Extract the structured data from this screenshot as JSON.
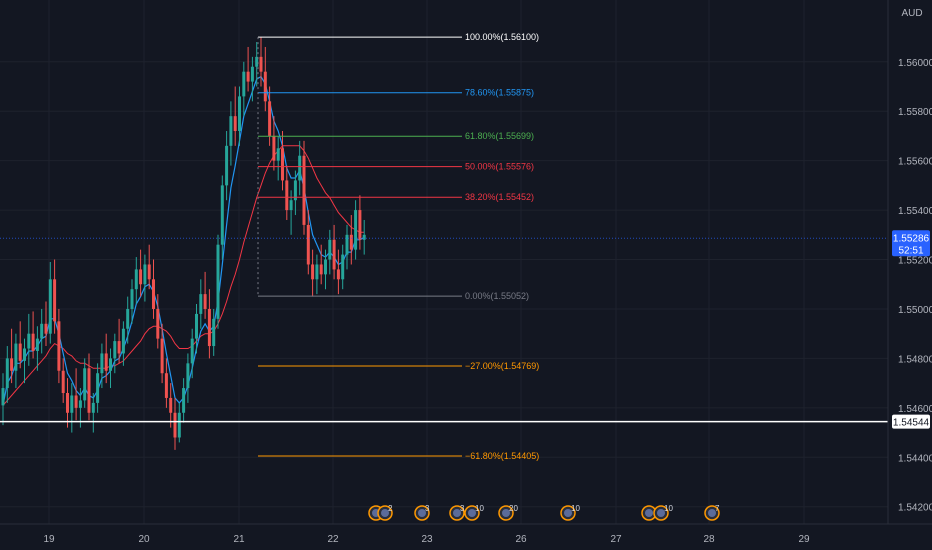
{
  "chart_data": {
    "type": "candlestick",
    "currency": "AUD",
    "ylim": [
      1.5413,
      1.5625
    ],
    "y_ticks": [
      "1.54200",
      "1.54400",
      "1.54600",
      "1.54800",
      "1.55000",
      "1.55200",
      "1.55400",
      "1.55600",
      "1.55800",
      "1.56000"
    ],
    "x_ticks": [
      "19",
      "20",
      "21",
      "22",
      "23",
      "26",
      "27",
      "28",
      "29"
    ],
    "current_price": {
      "price": 1.55286,
      "label": "1.55286",
      "countdown": "52:51",
      "color": "#2962ff"
    },
    "horizontal_line": {
      "price": 1.54544,
      "label": "1.54544",
      "color": "#ffffff"
    },
    "fib_levels": [
      {
        "label": "100.00%(1.56100)",
        "price": 1.561,
        "color": "#ffffff"
      },
      {
        "label": "78.60%(1.55875)",
        "price": 1.55875,
        "color": "#2196f3"
      },
      {
        "label": "61.80%(1.55699)",
        "price": 1.55699,
        "color": "#4caf50"
      },
      {
        "label": "50.00%(1.55576)",
        "price": 1.55576,
        "color": "#f23645"
      },
      {
        "label": "38.20%(1.55452)",
        "price": 1.55452,
        "color": "#f23645"
      },
      {
        "label": "0.00%(1.55052)",
        "price": 1.55052,
        "color": "#787b86"
      },
      {
        "label": "−27.00%(1.54769)",
        "price": 1.54769,
        "color": "#ff9800"
      },
      {
        "label": "−61.80%(1.54405)",
        "price": 1.54405,
        "color": "#ff9800"
      }
    ],
    "candles": [
      [
        1.5461,
        1.5474,
        1.5453,
        1.5468
      ],
      [
        1.5468,
        1.5485,
        1.5462,
        1.548
      ],
      [
        1.548,
        1.5492,
        1.547,
        1.5475
      ],
      [
        1.5475,
        1.549,
        1.5468,
        1.5486
      ],
      [
        1.5486,
        1.5495,
        1.5476,
        1.5479
      ],
      [
        1.5479,
        1.5488,
        1.547,
        1.5484
      ],
      [
        1.5484,
        1.5498,
        1.5477,
        1.549
      ],
      [
        1.549,
        1.5499,
        1.548,
        1.5483
      ],
      [
        1.5483,
        1.5493,
        1.5475,
        1.5488
      ],
      [
        1.5488,
        1.55,
        1.5482,
        1.5494
      ],
      [
        1.5494,
        1.5503,
        1.5485,
        1.549
      ],
      [
        1.549,
        1.5519,
        1.5486,
        1.5512
      ],
      [
        1.5512,
        1.552,
        1.549,
        1.5495
      ],
      [
        1.5495,
        1.55,
        1.547,
        1.5475
      ],
      [
        1.5475,
        1.548,
        1.5462,
        1.5466
      ],
      [
        1.5466,
        1.5472,
        1.5452,
        1.5458
      ],
      [
        1.5458,
        1.547,
        1.545,
        1.5465
      ],
      [
        1.5465,
        1.5476,
        1.5455,
        1.546
      ],
      [
        1.546,
        1.5468,
        1.5452,
        1.5463
      ],
      [
        1.5463,
        1.548,
        1.546,
        1.5476
      ],
      [
        1.5476,
        1.5482,
        1.5455,
        1.5458
      ],
      [
        1.5458,
        1.5466,
        1.545,
        1.5462
      ],
      [
        1.5462,
        1.5478,
        1.5458,
        1.5474
      ],
      [
        1.5474,
        1.5486,
        1.5468,
        1.5482
      ],
      [
        1.5482,
        1.549,
        1.547,
        1.5475
      ],
      [
        1.5475,
        1.5484,
        1.5468,
        1.548
      ],
      [
        1.548,
        1.549,
        1.5474,
        1.5487
      ],
      [
        1.5487,
        1.5496,
        1.5478,
        1.5482
      ],
      [
        1.5482,
        1.5495,
        1.5477,
        1.5492
      ],
      [
        1.5492,
        1.5505,
        1.5486,
        1.55
      ],
      [
        1.55,
        1.5512,
        1.5494,
        1.5508
      ],
      [
        1.5508,
        1.5521,
        1.5502,
        1.5516
      ],
      [
        1.5516,
        1.5524,
        1.5505,
        1.551
      ],
      [
        1.551,
        1.5522,
        1.5503,
        1.5518
      ],
      [
        1.5518,
        1.5526,
        1.5508,
        1.5512
      ],
      [
        1.5512,
        1.552,
        1.5496,
        1.55
      ],
      [
        1.55,
        1.5506,
        1.5484,
        1.5488
      ],
      [
        1.5488,
        1.5494,
        1.547,
        1.5474
      ],
      [
        1.5474,
        1.548,
        1.546,
        1.5464
      ],
      [
        1.5464,
        1.547,
        1.5452,
        1.5458
      ],
      [
        1.5458,
        1.5464,
        1.5443,
        1.5448
      ],
      [
        1.5448,
        1.5462,
        1.5446,
        1.5458
      ],
      [
        1.5458,
        1.5472,
        1.5454,
        1.5468
      ],
      [
        1.5468,
        1.5482,
        1.5462,
        1.5478
      ],
      [
        1.5478,
        1.5492,
        1.5472,
        1.5488
      ],
      [
        1.5488,
        1.5502,
        1.5482,
        1.5498
      ],
      [
        1.5498,
        1.5512,
        1.5492,
        1.5506
      ],
      [
        1.5506,
        1.5515,
        1.5496,
        1.55
      ],
      [
        1.55,
        1.5508,
        1.548,
        1.5485
      ],
      [
        1.5485,
        1.55,
        1.5481,
        1.5496
      ],
      [
        1.5496,
        1.553,
        1.5492,
        1.5526
      ],
      [
        1.5526,
        1.5554,
        1.552,
        1.555
      ],
      [
        1.555,
        1.5572,
        1.5544,
        1.5566
      ],
      [
        1.5566,
        1.5584,
        1.5558,
        1.5578
      ],
      [
        1.5578,
        1.559,
        1.5566,
        1.5572
      ],
      [
        1.5572,
        1.559,
        1.5566,
        1.5586
      ],
      [
        1.5586,
        1.56,
        1.5578,
        1.5596
      ],
      [
        1.5596,
        1.5606,
        1.5588,
        1.5592
      ],
      [
        1.5592,
        1.5602,
        1.5584,
        1.5598
      ],
      [
        1.5598,
        1.5608,
        1.559,
        1.5602
      ],
      [
        1.5602,
        1.561,
        1.559,
        1.5596
      ],
      [
        1.5596,
        1.5606,
        1.558,
        1.5584
      ],
      [
        1.5584,
        1.559,
        1.5566,
        1.557
      ],
      [
        1.557,
        1.5578,
        1.5556,
        1.556
      ],
      [
        1.556,
        1.557,
        1.5552,
        1.5565
      ],
      [
        1.5565,
        1.5572,
        1.5548,
        1.5552
      ],
      [
        1.5552,
        1.5558,
        1.5536,
        1.554
      ],
      [
        1.554,
        1.5548,
        1.553,
        1.5544
      ],
      [
        1.5544,
        1.5556,
        1.5538,
        1.5552
      ],
      [
        1.5552,
        1.5568,
        1.5546,
        1.5562
      ],
      [
        1.5562,
        1.5568,
        1.553,
        1.5534
      ],
      [
        1.5534,
        1.554,
        1.5514,
        1.5518
      ],
      [
        1.5518,
        1.5524,
        1.5505,
        1.5512
      ],
      [
        1.5512,
        1.5522,
        1.5506,
        1.5518
      ],
      [
        1.5518,
        1.5526,
        1.551,
        1.5514
      ],
      [
        1.5514,
        1.5524,
        1.5508,
        1.552
      ],
      [
        1.552,
        1.5532,
        1.5514,
        1.5528
      ],
      [
        1.5528,
        1.5534,
        1.5512,
        1.5516
      ],
      [
        1.5516,
        1.5524,
        1.5506,
        1.5512
      ],
      [
        1.5512,
        1.5526,
        1.5508,
        1.5522
      ],
      [
        1.5522,
        1.5534,
        1.5516,
        1.553
      ],
      [
        1.553,
        1.5538,
        1.5518,
        1.5524
      ],
      [
        1.5524,
        1.5544,
        1.552,
        1.554
      ],
      [
        1.554,
        1.5546,
        1.5524,
        1.5528
      ],
      [
        1.5528,
        1.5536,
        1.5522,
        1.553
      ]
    ],
    "ma_fast": [
      1.5461,
      1.547,
      1.5473,
      1.5478,
      1.5478,
      1.548,
      1.5483,
      1.5483,
      1.5485,
      1.5488,
      1.5489,
      1.5496,
      1.5496,
      1.549,
      1.5482,
      1.5474,
      1.5471,
      1.5467,
      1.5465,
      1.5468,
      1.5465,
      1.5464,
      1.5467,
      1.5472,
      1.5473,
      1.5475,
      1.5479,
      1.548,
      1.5484,
      1.5489,
      1.5495,
      1.5502,
      1.5505,
      1.5509,
      1.551,
      1.5507,
      1.5501,
      1.5492,
      1.5482,
      1.5473,
      1.5464,
      1.5462,
      1.5464,
      1.5469,
      1.5476,
      1.5484,
      1.5491,
      1.5494,
      1.5491,
      1.5493,
      1.5503,
      1.5518,
      1.5534,
      1.5549,
      1.5558,
      1.5568,
      1.5578,
      1.5583,
      1.5588,
      1.5593,
      1.5594,
      1.5591,
      1.5584,
      1.5576,
      1.5572,
      1.5566,
      1.5557,
      1.5553,
      1.5553,
      1.5556,
      1.5549,
      1.5539,
      1.553,
      1.5526,
      1.5522,
      1.5521,
      1.5523,
      1.5521,
      1.5518,
      1.5519,
      1.5523,
      1.5523,
      1.5528,
      1.5528,
      1.5529
    ],
    "ma_slow": [
      1.5461,
      1.5463,
      1.5465,
      1.5467,
      1.5469,
      1.5471,
      1.5473,
      1.5475,
      1.5477,
      1.5479,
      1.5481,
      1.5484,
      1.5486,
      1.5485,
      1.5484,
      1.5482,
      1.5481,
      1.5479,
      1.5478,
      1.5478,
      1.5477,
      1.5476,
      1.5476,
      1.5476,
      1.5476,
      1.5477,
      1.5477,
      1.5478,
      1.5479,
      1.5481,
      1.5483,
      1.5485,
      1.5487,
      1.549,
      1.5492,
      1.5493,
      1.5493,
      1.5492,
      1.5491,
      1.5489,
      1.5486,
      1.5484,
      1.5484,
      1.5484,
      1.5485,
      1.5487,
      1.5489,
      1.549,
      1.549,
      1.5491,
      1.5494,
      1.5498,
      1.5503,
      1.5509,
      1.5514,
      1.552,
      1.5527,
      1.5533,
      1.5539,
      1.5545,
      1.555,
      1.5555,
      1.5559,
      1.5562,
      1.5564,
      1.5566,
      1.5566,
      1.5566,
      1.5566,
      1.5566,
      1.5564,
      1.5561,
      1.5557,
      1.5553,
      1.555,
      1.5547,
      1.5545,
      1.5542,
      1.5539,
      1.5537,
      1.5535,
      1.5533,
      1.5532,
      1.5531,
      1.5531
    ],
    "event_markers": [
      {
        "label": "2"
      },
      {
        "label": "3"
      },
      {
        "label": "3"
      },
      {
        "label": "10"
      },
      {
        "label": "20"
      },
      {
        "label": "10"
      },
      {
        "label": "10"
      },
      {
        "label": "7"
      }
    ]
  }
}
